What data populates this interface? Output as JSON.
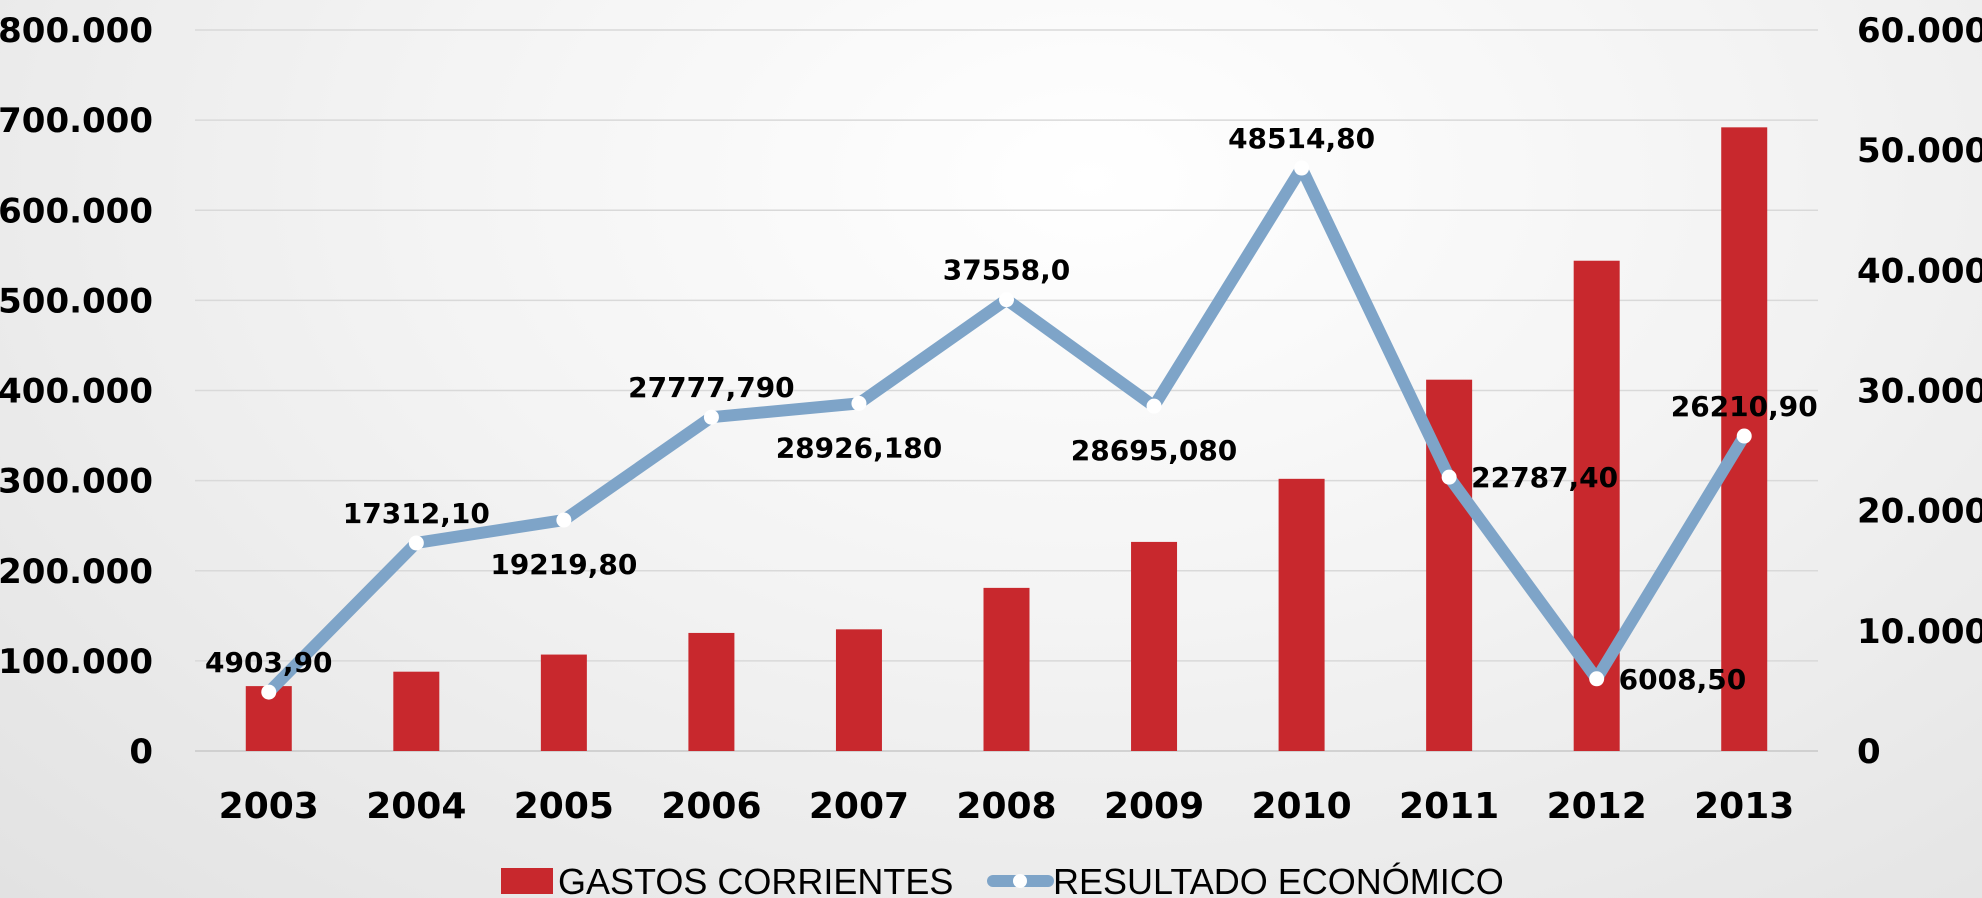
{
  "chart_data": {
    "type": "bar+line",
    "categories": [
      "2003",
      "2004",
      "2005",
      "2006",
      "2007",
      "2008",
      "2009",
      "2010",
      "2011",
      "2012",
      "2013"
    ],
    "series": [
      {
        "name": "GASTOS CORRIENTES",
        "type": "bar",
        "axis": "left",
        "color": "#c8282d",
        "values": [
          72000,
          88000,
          107000,
          131000,
          135000,
          181000,
          232000,
          302000,
          412000,
          544000,
          692000
        ]
      },
      {
        "name": "RESULTADO ECONÓMICO",
        "type": "line",
        "axis": "right",
        "color": "#7ea4c8",
        "values": [
          4903.9,
          17312.1,
          19219.8,
          27777.79,
          28926.18,
          37558.0,
          28695.08,
          48514.8,
          22787.4,
          6008.5,
          26210.9
        ],
        "labels": [
          "4903,90",
          "17312,10",
          "19219,80",
          "27777,790",
          "28926,180",
          "37558,0",
          "28695,080",
          "48514,80",
          "22787,40",
          "6008,50",
          "26210,90"
        ],
        "label_placement": [
          "above",
          "above",
          "below",
          "above",
          "below",
          "above",
          "below",
          "above",
          "right",
          "right",
          "above"
        ]
      }
    ],
    "y_left": {
      "ylim": [
        0,
        800000
      ],
      "ticks": [
        0,
        100000,
        200000,
        300000,
        400000,
        500000,
        600000,
        700000,
        800000
      ],
      "tick_labels": [
        "0",
        "100.000",
        "200.000",
        "300.000",
        "400.000",
        "500.000",
        "600.000",
        "700.000",
        "800.000"
      ]
    },
    "y_right": {
      "ylim": [
        0,
        60000
      ],
      "ticks": [
        0,
        10000,
        20000,
        30000,
        40000,
        50000,
        60000
      ],
      "tick_labels": [
        "0",
        "10.000",
        "20.000",
        "30.000",
        "40.000",
        "50.000",
        "60.000"
      ]
    },
    "grid": true,
    "legend": {
      "position": "bottom",
      "items": [
        {
          "label": "GASTOS CORRIENTES",
          "marker": "bar",
          "color": "#c8282d"
        },
        {
          "label": "RESULTADO ECONÓMICO",
          "marker": "line-dot",
          "color": "#7ea4c8"
        }
      ]
    },
    "colors": {
      "bar": "#c8282d",
      "line": "#7ea4c8",
      "gridline": "#d9d9d9",
      "marker_fill": "#ffffff"
    }
  }
}
